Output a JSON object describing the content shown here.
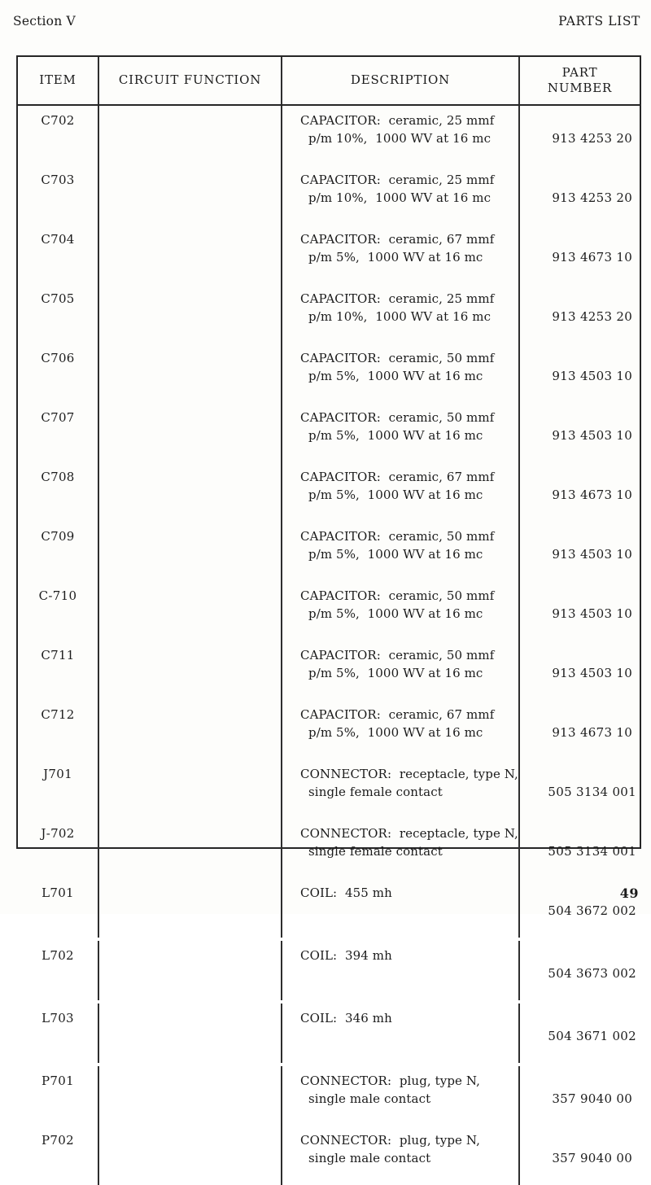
{
  "page": {
    "section_label": "Section V",
    "title": "PARTS LIST",
    "page_number": "49"
  },
  "table": {
    "columns": [
      "ITEM",
      "CIRCUIT FUNCTION",
      "DESCRIPTION",
      "PART\nNUMBER"
    ],
    "rows": [
      {
        "item": "C702",
        "circuit_function": "",
        "description_line1": "CAPACITOR:  ceramic, 25 mmf",
        "description_line2": "p/m 10%,  1000 WV at 16 mc",
        "part_number": "913 4253 20"
      },
      {
        "item": "C703",
        "circuit_function": "",
        "description_line1": "CAPACITOR:  ceramic, 25 mmf",
        "description_line2": "p/m 10%,  1000 WV at 16 mc",
        "part_number": "913 4253 20"
      },
      {
        "item": "C704",
        "circuit_function": "",
        "description_line1": "CAPACITOR:  ceramic, 67 mmf",
        "description_line2": "p/m 5%,  1000 WV at 16 mc",
        "part_number": "913 4673 10"
      },
      {
        "item": "C705",
        "circuit_function": "",
        "description_line1": "CAPACITOR:  ceramic, 25 mmf",
        "description_line2": "p/m 10%,  1000 WV at 16 mc",
        "part_number": "913 4253 20"
      },
      {
        "item": "C706",
        "circuit_function": "",
        "description_line1": "CAPACITOR:  ceramic, 50 mmf",
        "description_line2": "p/m 5%,  1000 WV at 16 mc",
        "part_number": "913 4503 10"
      },
      {
        "item": "C707",
        "circuit_function": "",
        "description_line1": "CAPACITOR:  ceramic, 50 mmf",
        "description_line2": "p/m 5%,  1000 WV at 16 mc",
        "part_number": "913 4503 10"
      },
      {
        "item": "C708",
        "circuit_function": "",
        "description_line1": "CAPACITOR:  ceramic, 67 mmf",
        "description_line2": "p/m 5%,  1000 WV at 16 mc",
        "part_number": "913 4673 10"
      },
      {
        "item": "C709",
        "circuit_function": "",
        "description_line1": "CAPACITOR:  ceramic, 50 mmf",
        "description_line2": "p/m 5%,  1000 WV at 16 mc",
        "part_number": "913 4503 10"
      },
      {
        "item": "C-710",
        "circuit_function": "",
        "description_line1": "CAPACITOR:  ceramic, 50 mmf",
        "description_line2": "p/m 5%,  1000 WV at 16 mc",
        "part_number": "913 4503 10"
      },
      {
        "item": "C711",
        "circuit_function": "",
        "description_line1": "CAPACITOR:  ceramic, 50 mmf",
        "description_line2": "p/m 5%,  1000 WV at 16 mc",
        "part_number": "913 4503 10"
      },
      {
        "item": "C712",
        "circuit_function": "",
        "description_line1": "CAPACITOR:  ceramic, 67 mmf",
        "description_line2": "p/m 5%,  1000 WV at 16 mc",
        "part_number": "913 4673 10"
      },
      {
        "item": "J701",
        "circuit_function": "",
        "description_line1": "CONNECTOR:  receptacle, type N,",
        "description_line2": "single female contact",
        "part_number": "505 3134 001"
      },
      {
        "item": "J-702",
        "circuit_function": "",
        "description_line1": "CONNECTOR:  receptacle, type N,",
        "description_line2": "single female contact",
        "part_number": "505 3134 001"
      },
      {
        "item": "L701",
        "circuit_function": "",
        "description_line1": "COIL:  455 mh",
        "description_line2": "",
        "part_number": "504 3672 002"
      },
      {
        "item": "L702",
        "circuit_function": "",
        "description_line1": "COIL:  394 mh",
        "description_line2": "",
        "part_number": "504 3673 002"
      },
      {
        "item": "L703",
        "circuit_function": "",
        "description_line1": "COIL:  346 mh",
        "description_line2": "",
        "part_number": "504 3671 002"
      },
      {
        "item": "P701",
        "circuit_function": "",
        "description_line1": "CONNECTOR:  plug, type N,",
        "description_line2": "single male contact",
        "part_number": "357 9040 00"
      },
      {
        "item": "P702",
        "circuit_function": "",
        "description_line1": "CONNECTOR:  plug, type N,",
        "description_line2": "single male contact",
        "part_number": "357 9040 00"
      }
    ]
  }
}
